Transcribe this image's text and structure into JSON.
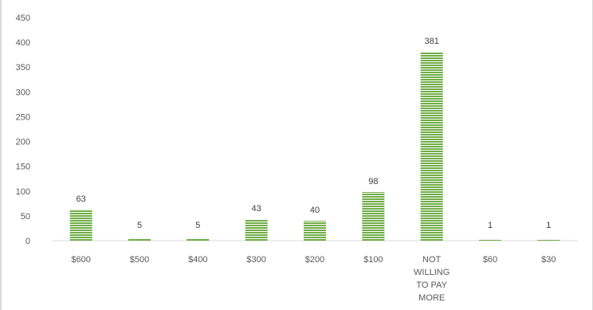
{
  "chart_data": {
    "type": "bar",
    "title": "",
    "xlabel": "",
    "ylabel": "",
    "categories": [
      "$600",
      "$500",
      "$400",
      "$300",
      "$200",
      "$100",
      "NOT WILLING TO PAY MORE",
      "$60",
      "$30"
    ],
    "category_lines": [
      [
        "$600"
      ],
      [
        "$500"
      ],
      [
        "$400"
      ],
      [
        "$300"
      ],
      [
        "$200"
      ],
      [
        "$100"
      ],
      [
        "NOT",
        "WILLING",
        "TO PAY",
        "MORE"
      ],
      [
        "$60"
      ],
      [
        "$30"
      ]
    ],
    "values": [
      63,
      5,
      5,
      43,
      40,
      98,
      381,
      1,
      1
    ],
    "data_labels": [
      "63",
      "5",
      "5",
      "43",
      "40",
      "98",
      "381",
      "1",
      "1"
    ],
    "ylim": [
      0,
      450
    ],
    "yticks": [
      0,
      50,
      100,
      150,
      200,
      250,
      300,
      350,
      400,
      450
    ],
    "grid": false,
    "legend": "none",
    "colors": {
      "bar": "#70ad47",
      "bar_stripe": "#ffffff",
      "axis": "#d9d9d9",
      "text": "#595959"
    }
  }
}
